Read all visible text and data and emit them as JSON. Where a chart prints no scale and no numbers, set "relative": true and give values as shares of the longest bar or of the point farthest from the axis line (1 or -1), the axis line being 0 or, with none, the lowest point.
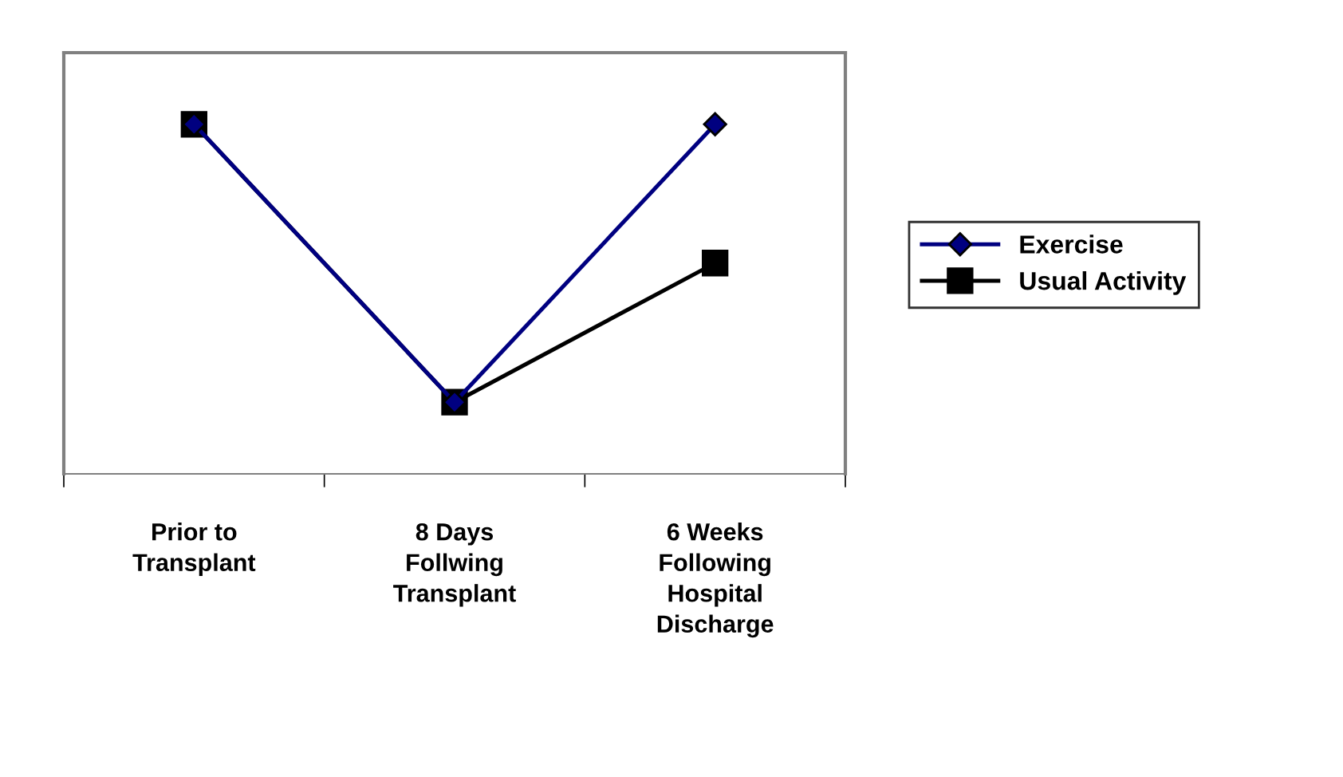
{
  "chart_data": {
    "type": "line",
    "relative": true,
    "categories": [
      "Prior to\nTransplant",
      "8 Days\nFollwing\nTransplant",
      "6 Weeks\nFollowing\nHospital\nDischarge"
    ],
    "series": [
      {
        "name": "Exercise",
        "color": "#000080",
        "marker": "diamond",
        "values": [
          1,
          0.205,
          1
        ]
      },
      {
        "name": "Usual Activity",
        "color": "#000000",
        "marker": "square",
        "values": [
          1,
          0.205,
          0.603
        ]
      }
    ],
    "legend": "right",
    "grid": false,
    "line_style": "solid"
  }
}
